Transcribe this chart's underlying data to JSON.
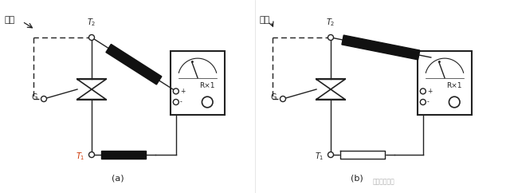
{
  "bg_color": "#ffffff",
  "line_color": "#222222",
  "title_a": "(a)",
  "title_b": "(b)",
  "label_daoxian": "导线",
  "label_G": "G",
  "label_Rx1": "R×1",
  "label_plus": "+",
  "label_minus": "-",
  "watermark": "电子工程专辑"
}
